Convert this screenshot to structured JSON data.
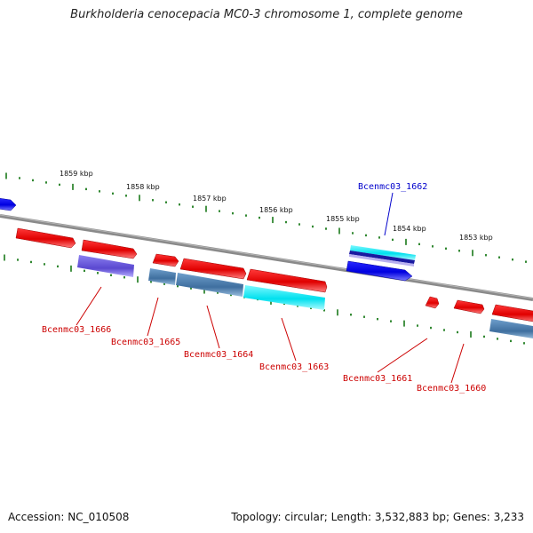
{
  "title": "Burkholderia cenocepacia MC0-3 chromosome 1, complete genome",
  "footer": {
    "accession": "Accession: NC_010508",
    "topology": "Topology: circular; Length: 3,532,883 bp; Genes: 3,233"
  },
  "scale_labels": [
    "1859 kbp",
    "1858 kbp",
    "1857 kbp",
    "1856 kbp",
    "1855 kbp",
    "1854 kbp",
    "1853 kbp"
  ],
  "gene_labels": [
    {
      "text": "Bcenmc03_1662",
      "color": "#0000cc"
    },
    {
      "text": "Bcenmc03_1666",
      "color": "#cc0000"
    },
    {
      "text": "Bcenmc03_1665",
      "color": "#cc0000"
    },
    {
      "text": "Bcenmc03_1664",
      "color": "#cc0000"
    },
    {
      "text": "Bcenmc03_1663",
      "color": "#cc0000"
    },
    {
      "text": "Bcenmc03_1661",
      "color": "#cc0000"
    },
    {
      "text": "Bcenmc03_1660",
      "color": "#cc0000"
    }
  ],
  "colors": {
    "forward_gene": "#ee0000",
    "reverse_gene": "#0000ee",
    "backbone": "#808080",
    "tick": "#1a7a1a",
    "steelblue_feature": "#4f7fb0",
    "cyan_feature": "#00e5ee",
    "purple_feature": "#7060dd"
  }
}
